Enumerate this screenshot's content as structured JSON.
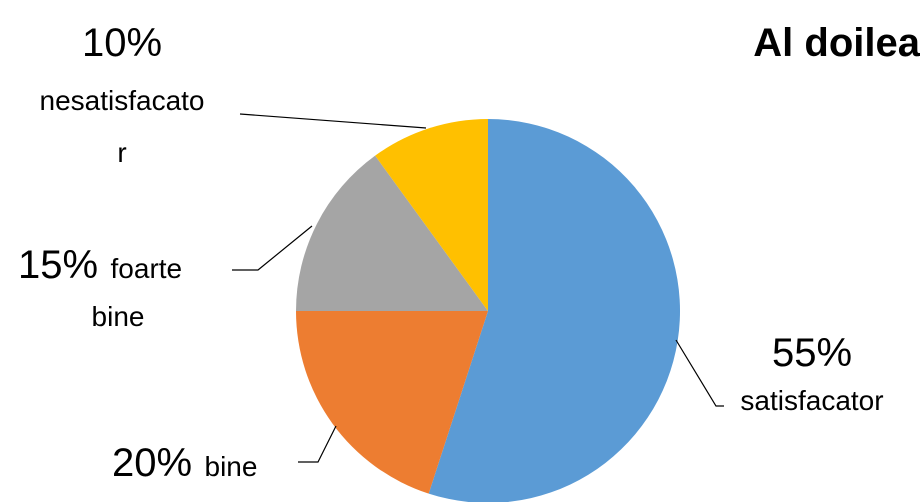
{
  "chart_data": {
    "type": "pie",
    "title": "Al doilea",
    "categories": [
      "satisfacator",
      "bine",
      "foarte bine",
      "nesatisfacator"
    ],
    "values": [
      55,
      20,
      15,
      10
    ],
    "legend": "none",
    "labels": [
      {
        "percent": "55%",
        "lines": [
          "satisfacator"
        ]
      },
      {
        "percent": "20%",
        "lines": [
          "bine"
        ]
      },
      {
        "percent": "15%",
        "lines": [
          "foarte",
          "bine"
        ]
      },
      {
        "percent": "10%",
        "lines": [
          "nesatisfacato",
          "r"
        ]
      }
    ]
  },
  "colors": {
    "satisfacator": "#5B9BD5",
    "bine": "#ED7D31",
    "foarte bine": "#A5A5A5",
    "nesatisfacator": "#FFC000"
  }
}
